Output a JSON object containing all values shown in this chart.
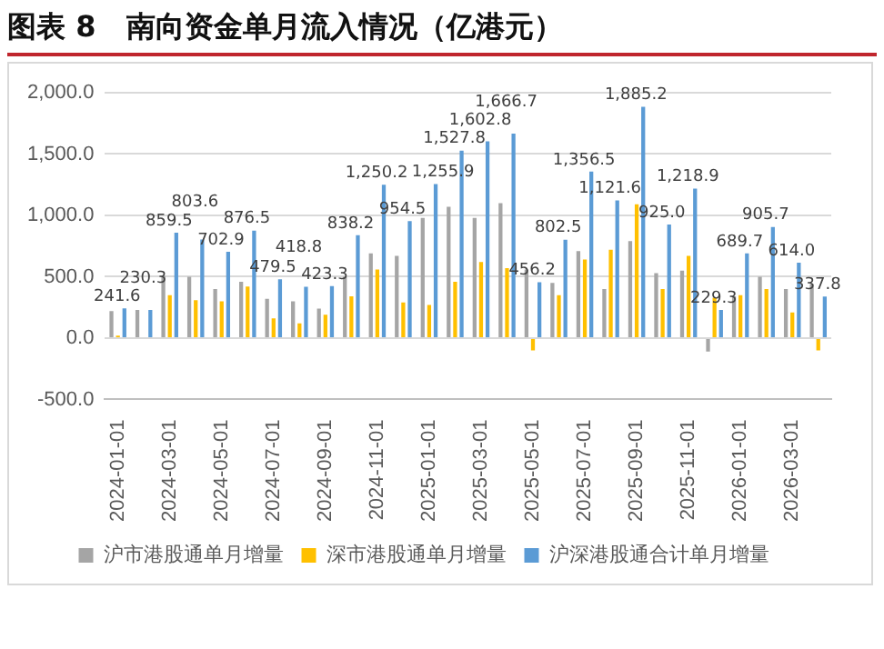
{
  "chart_data": {
    "type": "bar",
    "title": "图表 8   南向资金单月流入情况（亿港元）",
    "categories": [
      "2024-01-01",
      null,
      "2024-03-01",
      null,
      "2024-05-01",
      null,
      "2024-07-01",
      null,
      "2024-09-01",
      null,
      "2024-11-01",
      null,
      "2025-01-01",
      null,
      "2025-03-01",
      null,
      "2025-05-01",
      null,
      "2025-07-01",
      null,
      "2025-09-01",
      null,
      "2025-11-01",
      null,
      "2026-01-01",
      null,
      "2026-03-01",
      null
    ],
    "series": [
      {
        "name": "沪市港股通单月增量",
        "color": "#a5a5a5",
        "values": [
          220,
          230,
          510,
          500,
          400,
          460,
          320,
          300,
          240,
          500,
          690,
          670,
          980,
          1070,
          980,
          1100,
          560,
          450,
          710,
          400,
          790,
          530,
          550,
          -110,
          340,
          500,
          400,
          440
        ]
      },
      {
        "name": "深市港股通单月增量",
        "color": "#ffc000",
        "values": [
          20,
          0,
          350,
          310,
          300,
          420,
          160,
          120,
          190,
          340,
          560,
          290,
          270,
          460,
          620,
          570,
          -100,
          350,
          640,
          720,
          1090,
          400,
          670,
          330,
          350,
          400,
          210,
          -100
        ]
      },
      {
        "name": "沪深港股通合计单月增量",
        "color": "#5b9bd5",
        "values": [
          241.6,
          230.3,
          859.5,
          803.6,
          702.9,
          876.5,
          479.5,
          418.8,
          423.3,
          838.2,
          1250.2,
          954.5,
          1255.9,
          1527.8,
          1602.8,
          1666.7,
          456.2,
          802.5,
          1356.5,
          1121.6,
          1885.2,
          925.0,
          1218.9,
          229.3,
          689.7,
          905.7,
          614.0,
          337.8
        ],
        "value_labels": [
          "241.6",
          "230.3",
          "859.5",
          "803.6",
          "702.9",
          "876.5",
          "479.5",
          "418.8",
          "423.3",
          "838.2",
          "1,250.2",
          "954.5",
          "1,255.9",
          "1,527.8",
          "1,602.8",
          "1,666.7",
          "456.2",
          "802.5",
          "1,356.5",
          "1,121.6",
          "1,885.2",
          "925.0",
          "1,218.9",
          "229.3",
          "689.7",
          "905.7",
          "614.0",
          "337.8"
        ]
      }
    ],
    "ylim": [
      -500,
      2000
    ],
    "yticks": [
      {
        "value": -500,
        "label": "-500.0"
      },
      {
        "value": 0,
        "label": "0.0"
      },
      {
        "value": 500,
        "label": "500.0"
      },
      {
        "value": 1000,
        "label": "1,000.0"
      },
      {
        "value": 1500,
        "label": "1,500.0"
      },
      {
        "value": 2000,
        "label": "2,000.0"
      }
    ],
    "grid": "y",
    "legend": "bottom"
  }
}
